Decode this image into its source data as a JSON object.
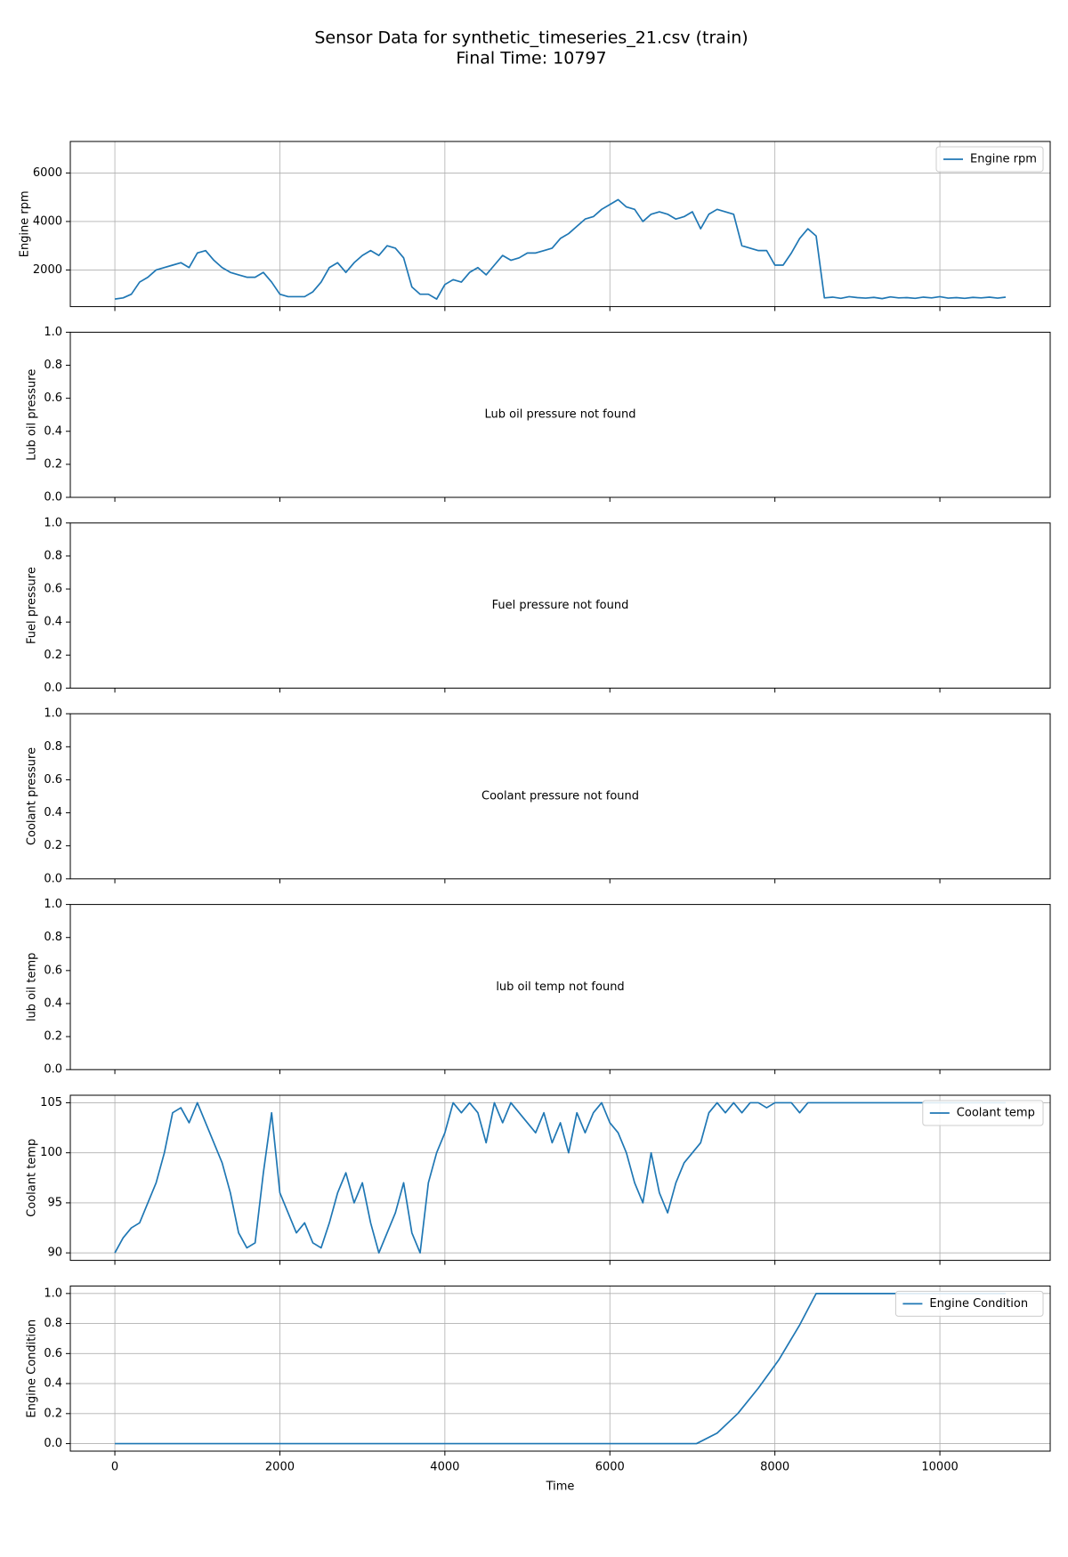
{
  "title": "Sensor Data for synthetic_timeseries_21.csv (train)",
  "subtitle": "Final Time: 10797",
  "chart_data": [
    {
      "type": "line",
      "ylabel": "Engine rpm",
      "grid": true,
      "legend": "upper right",
      "xlim": [
        -540,
        11337
      ],
      "xticks": [
        0,
        2000,
        4000,
        6000,
        8000,
        10000
      ],
      "ylim": [
        490,
        7300
      ],
      "yticks": [
        2000,
        4000,
        6000
      ],
      "series": [
        {
          "name": "Engine rpm",
          "color": "#1f77b4",
          "x": [
            0,
            100,
            200,
            300,
            400,
            500,
            600,
            700,
            800,
            900,
            1000,
            1100,
            1200,
            1300,
            1400,
            1500,
            1600,
            1700,
            1800,
            1900,
            2000,
            2100,
            2200,
            2300,
            2400,
            2500,
            2600,
            2700,
            2800,
            2900,
            3000,
            3100,
            3200,
            3300,
            3400,
            3500,
            3600,
            3700,
            3800,
            3900,
            4000,
            4100,
            4200,
            4300,
            4400,
            4500,
            4600,
            4700,
            4800,
            4900,
            5000,
            5100,
            5200,
            5300,
            5400,
            5500,
            5600,
            5700,
            5800,
            5900,
            6000,
            6100,
            6200,
            6300,
            6400,
            6500,
            6600,
            6700,
            6800,
            6900,
            7000,
            7100,
            7200,
            7300,
            7400,
            7500,
            7600,
            7700,
            7800,
            7900,
            8000,
            8100,
            8200,
            8300,
            8400,
            8500,
            8600,
            8700,
            8800,
            8900,
            9000,
            9100,
            9200,
            9300,
            9400,
            9500,
            9600,
            9700,
            9800,
            9900,
            10000,
            10100,
            10200,
            10300,
            10400,
            10500,
            10600,
            10700,
            10797
          ],
          "values": [
            800,
            850,
            1000,
            1500,
            1700,
            2000,
            2100,
            2200,
            2300,
            2100,
            2700,
            2800,
            2400,
            2100,
            1900,
            1800,
            1700,
            1700,
            1900,
            1500,
            1000,
            900,
            900,
            900,
            1100,
            1500,
            2100,
            2300,
            1900,
            2300,
            2600,
            2800,
            2600,
            3000,
            2900,
            2500,
            1300,
            1000,
            1000,
            800,
            1400,
            1600,
            1500,
            1900,
            2100,
            1800,
            2200,
            2600,
            2400,
            2500,
            2700,
            2700,
            2800,
            2900,
            3300,
            3500,
            3800,
            4100,
            4200,
            4500,
            4700,
            4900,
            4600,
            4500,
            4000,
            4300,
            4400,
            4300,
            4100,
            4200,
            4400,
            3700,
            4300,
            4500,
            4400,
            4300,
            3000,
            2900,
            2800,
            2800,
            2200,
            2200,
            2700,
            3300,
            3700,
            3400,
            850,
            880,
            830,
            900,
            860,
            840,
            870,
            820,
            890,
            850,
            860,
            830,
            880,
            850,
            900,
            840,
            860,
            830,
            870,
            850,
            880,
            840,
            880
          ]
        }
      ]
    },
    {
      "type": "empty",
      "ylabel": "Lub oil pressure",
      "grid": false,
      "annotation": "Lub oil pressure not found",
      "xlim": [
        -540,
        11337
      ],
      "xticks": [
        0,
        2000,
        4000,
        6000,
        8000,
        10000
      ],
      "ylim": [
        0,
        1
      ],
      "yticks": [
        {
          "value": 0,
          "label": "0.0"
        },
        0.2,
        0.4,
        0.6,
        0.8,
        {
          "value": 1,
          "label": "1.0"
        }
      ]
    },
    {
      "type": "empty",
      "ylabel": "Fuel pressure",
      "grid": false,
      "annotation": "Fuel pressure not found",
      "xlim": [
        -540,
        11337
      ],
      "xticks": [
        0,
        2000,
        4000,
        6000,
        8000,
        10000
      ],
      "ylim": [
        0,
        1
      ],
      "yticks": [
        {
          "value": 0,
          "label": "0.0"
        },
        0.2,
        0.4,
        0.6,
        0.8,
        {
          "value": 1,
          "label": "1.0"
        }
      ]
    },
    {
      "type": "empty",
      "ylabel": "Coolant pressure",
      "grid": false,
      "annotation": "Coolant pressure not found",
      "xlim": [
        -540,
        11337
      ],
      "xticks": [
        0,
        2000,
        4000,
        6000,
        8000,
        10000
      ],
      "ylim": [
        0,
        1
      ],
      "yticks": [
        {
          "value": 0,
          "label": "0.0"
        },
        0.2,
        0.4,
        0.6,
        0.8,
        {
          "value": 1,
          "label": "1.0"
        }
      ]
    },
    {
      "type": "empty",
      "ylabel": "lub oil temp",
      "grid": false,
      "annotation": "lub oil temp not found",
      "xlim": [
        -540,
        11337
      ],
      "xticks": [
        0,
        2000,
        4000,
        6000,
        8000,
        10000
      ],
      "ylim": [
        0,
        1
      ],
      "yticks": [
        {
          "value": 0,
          "label": "0.0"
        },
        0.2,
        0.4,
        0.6,
        0.8,
        {
          "value": 1,
          "label": "1.0"
        }
      ]
    },
    {
      "type": "line",
      "ylabel": "Coolant temp",
      "grid": true,
      "legend": "upper right",
      "xlim": [
        -540,
        11337
      ],
      "xticks": [
        0,
        2000,
        4000,
        6000,
        8000,
        10000
      ],
      "ylim": [
        89.25,
        105.75
      ],
      "yticks": [
        90,
        95,
        100,
        105
      ],
      "series": [
        {
          "name": "Coolant temp",
          "color": "#1f77b4",
          "x": [
            0,
            100,
            200,
            300,
            400,
            500,
            600,
            700,
            800,
            900,
            1000,
            1100,
            1200,
            1300,
            1400,
            1500,
            1600,
            1700,
            1800,
            1900,
            2000,
            2100,
            2200,
            2300,
            2400,
            2500,
            2600,
            2700,
            2800,
            2900,
            3000,
            3100,
            3200,
            3300,
            3400,
            3500,
            3600,
            3700,
            3800,
            3900,
            4000,
            4100,
            4200,
            4300,
            4400,
            4500,
            4600,
            4700,
            4800,
            4900,
            5000,
            5100,
            5200,
            5300,
            5400,
            5500,
            5600,
            5700,
            5800,
            5900,
            6000,
            6100,
            6200,
            6300,
            6400,
            6500,
            6600,
            6700,
            6800,
            6900,
            7000,
            7100,
            7200,
            7300,
            7400,
            7500,
            7600,
            7700,
            7800,
            7900,
            8000,
            8100,
            8200,
            8300,
            8400,
            8500,
            8600,
            8700,
            8800,
            8900,
            9000,
            9100,
            9200,
            9300,
            9400,
            9500,
            9600,
            9700,
            9800,
            9900,
            10000,
            10100,
            10200,
            10300,
            10400,
            10500,
            10600,
            10700,
            10797
          ],
          "values": [
            90,
            91.5,
            92.5,
            93,
            95,
            97,
            100,
            104,
            104.5,
            103,
            105,
            103,
            101,
            99,
            96,
            92,
            90.5,
            91,
            98,
            104,
            96,
            94,
            92,
            93,
            91,
            90.5,
            93,
            96,
            98,
            95,
            97,
            93,
            90,
            92,
            94,
            97,
            92,
            90,
            97,
            100,
            102,
            105,
            104,
            105,
            104,
            101,
            105,
            103,
            105,
            104,
            103,
            102,
            104,
            101,
            103,
            100,
            104,
            102,
            104,
            105,
            103,
            102,
            100,
            97,
            95,
            100,
            96,
            94,
            97,
            99,
            100,
            101,
            104,
            105,
            104,
            105,
            104,
            105,
            105,
            104.5,
            105,
            105,
            105,
            104,
            105,
            105,
            105,
            105,
            105,
            105,
            105,
            105,
            105,
            105,
            105,
            105,
            105,
            105,
            105,
            105,
            105,
            105,
            105,
            105,
            105,
            105,
            105,
            105,
            105
          ]
        }
      ]
    },
    {
      "type": "line",
      "ylabel": "Engine Condition",
      "xlabel": "Time",
      "grid": true,
      "legend": "upper right",
      "xlim": [
        -540,
        11337
      ],
      "xticks": [
        0,
        2000,
        4000,
        6000,
        8000,
        10000
      ],
      "ylim": [
        -0.05,
        1.05
      ],
      "yticks": [
        {
          "value": 0,
          "label": "0.0"
        },
        0.2,
        0.4,
        0.6,
        0.8,
        {
          "value": 1,
          "label": "1.0"
        }
      ],
      "series": [
        {
          "name": "Engine Condition",
          "color": "#1f77b4",
          "x": [
            0,
            7050,
            7300,
            7550,
            7800,
            8050,
            8300,
            8500,
            10797
          ],
          "values": [
            0,
            0,
            0.07,
            0.2,
            0.37,
            0.56,
            0.79,
            1,
            1
          ]
        }
      ]
    }
  ]
}
